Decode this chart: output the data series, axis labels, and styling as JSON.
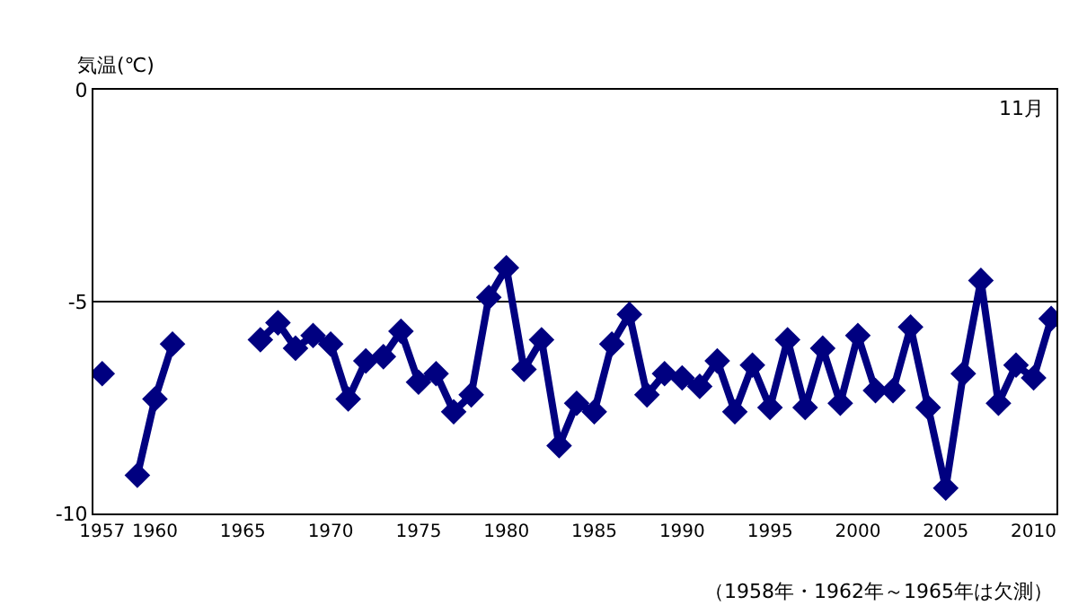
{
  "chart_data": {
    "type": "line",
    "ylabel": "気温(℃)",
    "annotations": [
      "11月",
      "（1958年・1962年～1965年は欠測）"
    ],
    "x": [
      1957,
      1958,
      1959,
      1960,
      1961,
      1962,
      1963,
      1964,
      1965,
      1966,
      1967,
      1968,
      1969,
      1970,
      1971,
      1972,
      1973,
      1974,
      1975,
      1976,
      1977,
      1978,
      1979,
      1980,
      1981,
      1982,
      1983,
      1984,
      1985,
      1986,
      1987,
      1988,
      1989,
      1990,
      1991,
      1992,
      1993,
      1994,
      1995,
      1996,
      1997,
      1998,
      1999,
      2000,
      2001,
      2002,
      2003,
      2004,
      2005,
      2006,
      2007,
      2008,
      2009,
      2010,
      2011
    ],
    "series": [
      {
        "color": "#000080",
        "values": [
          -6.7,
          null,
          -9.1,
          -7.3,
          -6.0,
          null,
          null,
          null,
          null,
          -5.9,
          -5.5,
          -6.1,
          -5.8,
          -6.0,
          -7.3,
          -6.4,
          -6.3,
          -5.7,
          -6.9,
          -6.7,
          -7.6,
          -7.2,
          -4.9,
          -4.2,
          -6.6,
          -5.9,
          -8.4,
          -7.4,
          -7.6,
          -6.0,
          -5.3,
          -7.2,
          -6.7,
          -6.8,
          -7.0,
          -6.4,
          -7.6,
          -6.5,
          -7.5,
          -5.9,
          -7.5,
          -6.1,
          -7.4,
          -5.8,
          -7.1,
          -7.1,
          -5.6,
          -7.5,
          -9.4,
          -6.7,
          -4.5,
          -7.4,
          -6.5,
          -6.8,
          -5.4
        ]
      }
    ],
    "xlim": [
      1956.5,
      2011.3
    ],
    "xticks": [
      1957,
      1960,
      1965,
      1970,
      1975,
      1980,
      1985,
      1990,
      1995,
      2000,
      2005,
      2010
    ],
    "ylim": [
      -10,
      0
    ],
    "yticks": [
      -10,
      -5,
      0
    ],
    "grid": "y",
    "marker": "diamond",
    "line_style": "solid"
  }
}
